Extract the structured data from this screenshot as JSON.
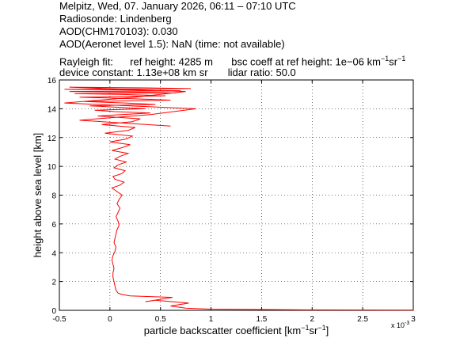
{
  "header": {
    "line1": "Melpitz, Wed, 07. January 2026, 06:11 – 07:10 UTC",
    "line2": "Radiosonde: Lindenberg",
    "line3": "AOD(CHM170103): 0.030",
    "line4": "AOD(Aeronet level 1.5): NaN   (time: not available)",
    "line5_a": "Rayleigh fit:",
    "line5_b": "ref height: 4285 m",
    "line5_c": "bsc coeff at ref height: 1e−06 km",
    "line5_c_sup1": "−1",
    "line5_c_mid": "sr",
    "line5_c_sup2": "−1",
    "line6_a": "device constant: 1.13e+08 km sr",
    "line6_b": "lidar ratio: 50.0"
  },
  "chart_data": {
    "type": "line",
    "xlabel_main": "particle backscatter coefficient [km",
    "xlabel_sup1": "−1",
    "xlabel_mid": "sr",
    "xlabel_sup2": "−1",
    "xlabel_end": "]",
    "ylabel": "height above sea level [km]",
    "x_multiplier": "x 10",
    "x_multiplier_exp": "-3",
    "xlim": [
      -0.5,
      3
    ],
    "ylim": [
      0,
      16
    ],
    "xticks": [
      "-0.5",
      "0",
      "0.5",
      "1",
      "1.5",
      "2",
      "2.5",
      "3"
    ],
    "yticks": [
      "0",
      "2",
      "4",
      "6",
      "8",
      "10",
      "12",
      "14",
      "16"
    ],
    "grid": true,
    "line_color": "#ff0000",
    "series": [
      {
        "x": [
          3.0,
          1.8,
          1.0,
          0.75,
          0.6,
          0.78,
          0.45,
          0.35,
          0.62,
          0.2,
          0.12,
          0.08,
          0.06,
          0.05,
          0.04,
          0.03,
          0.03,
          0.04,
          0.03,
          0.02,
          0.03,
          0.05,
          0.06,
          0.04,
          0.05,
          0.06,
          0.07,
          0.09,
          0.08,
          0.06,
          0.08,
          0.1,
          0.07,
          0.09,
          0.12,
          0.06,
          0.02,
          0.1,
          0.14,
          0.05,
          0.03,
          0.12,
          0.15,
          0.04,
          0.08,
          0.16,
          0.05,
          0.1,
          0.18,
          0.02,
          0.12,
          0.2,
          0.0,
          0.16,
          0.22,
          -0.05,
          0.18,
          0.25,
          -0.08,
          0.22,
          0.3,
          -0.12,
          0.4,
          0.05,
          -0.15,
          0.35,
          0.1,
          -0.2,
          0.45,
          0.15,
          -0.25,
          0.6,
          0.2,
          -0.3,
          0.55,
          0.1,
          -0.35,
          0.65,
          0.3,
          -0.4,
          0.7,
          0.2,
          -0.45,
          0.8,
          0.35,
          -0.4,
          0.75,
          0.25,
          -0.45,
          0.85,
          0.4,
          -0.3,
          0.6
        ],
        "y": [
          0.02,
          0.04,
          0.08,
          0.15,
          0.3,
          0.5,
          0.7,
          0.6,
          0.9,
          1.0,
          1.1,
          1.2,
          1.4,
          1.7,
          2.0,
          2.3,
          2.6,
          2.9,
          3.2,
          3.5,
          3.8,
          4.1,
          4.4,
          4.7,
          5.0,
          5.3,
          5.6,
          5.9,
          6.2,
          6.5,
          6.8,
          7.1,
          7.4,
          7.7,
          8.0,
          8.3,
          8.5,
          8.7,
          8.9,
          9.1,
          9.3,
          9.5,
          9.7,
          9.9,
          10.1,
          10.3,
          10.5,
          10.7,
          10.9,
          11.1,
          11.3,
          11.5,
          11.7,
          11.9,
          12.1,
          12.3,
          12.5,
          12.7,
          12.9,
          13.1,
          13.3,
          13.5,
          13.7,
          13.8,
          13.9,
          14.0,
          14.1,
          14.2,
          14.3,
          14.4,
          14.5,
          14.6,
          14.7,
          14.8,
          14.9,
          15.0,
          15.05,
          15.1,
          15.15,
          15.2,
          15.25,
          15.3,
          15.35,
          15.4,
          15.45,
          15.5,
          15.2,
          14.8,
          14.4,
          14.0,
          13.6,
          13.2,
          12.8
        ]
      }
    ]
  }
}
